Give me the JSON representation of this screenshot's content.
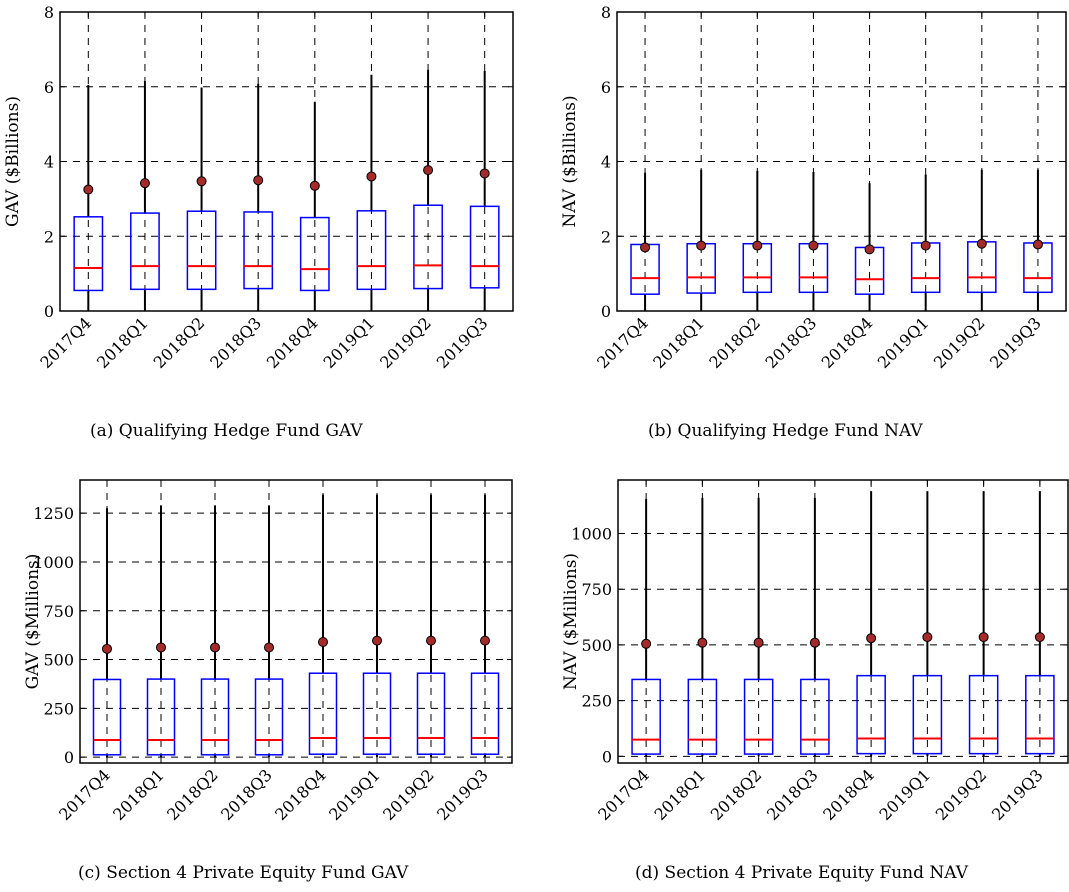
{
  "chart_data": [
    {
      "type": "box",
      "panel": "a",
      "caption": "(a) Qualifying Hedge Fund GAV",
      "ylabel": "GAV ($Billions)",
      "xlabel": "",
      "ylim": [
        0,
        8
      ],
      "yticks": [
        0,
        2,
        4,
        6,
        8
      ],
      "grid": true,
      "categories": [
        "2017Q4",
        "2018Q1",
        "2018Q2",
        "2018Q3",
        "2018Q4",
        "2019Q1",
        "2019Q2",
        "2019Q3"
      ],
      "boxes": [
        {
          "whisker_low": 0.0,
          "q1": 0.55,
          "median": 1.15,
          "q3": 2.52,
          "whisker_high": 6.05,
          "mean": 3.25
        },
        {
          "whisker_low": 0.0,
          "q1": 0.58,
          "median": 1.2,
          "q3": 2.62,
          "whisker_high": 6.15,
          "mean": 3.42
        },
        {
          "whisker_low": 0.0,
          "q1": 0.58,
          "median": 1.2,
          "q3": 2.67,
          "whisker_high": 5.98,
          "mean": 3.47
        },
        {
          "whisker_low": 0.0,
          "q1": 0.6,
          "median": 1.2,
          "q3": 2.65,
          "whisker_high": 6.08,
          "mean": 3.5
        },
        {
          "whisker_low": 0.0,
          "q1": 0.55,
          "median": 1.12,
          "q3": 2.5,
          "whisker_high": 5.6,
          "mean": 3.35
        },
        {
          "whisker_low": 0.0,
          "q1": 0.58,
          "median": 1.2,
          "q3": 2.68,
          "whisker_high": 6.32,
          "mean": 3.6
        },
        {
          "whisker_low": 0.0,
          "q1": 0.6,
          "median": 1.22,
          "q3": 2.83,
          "whisker_high": 6.45,
          "mean": 3.77
        },
        {
          "whisker_low": 0.0,
          "q1": 0.62,
          "median": 1.2,
          "q3": 2.8,
          "whisker_high": 6.42,
          "mean": 3.68
        }
      ]
    },
    {
      "type": "box",
      "panel": "b",
      "caption": "(b) Qualifying Hedge Fund NAV",
      "ylabel": "NAV ($Billions)",
      "xlabel": "",
      "ylim": [
        0,
        8
      ],
      "yticks": [
        0,
        2,
        4,
        6,
        8
      ],
      "grid": true,
      "categories": [
        "2017Q4",
        "2018Q1",
        "2018Q2",
        "2018Q3",
        "2018Q4",
        "2019Q1",
        "2019Q2",
        "2019Q3"
      ],
      "boxes": [
        {
          "whisker_low": 0.0,
          "q1": 0.45,
          "median": 0.88,
          "q3": 1.78,
          "whisker_high": 3.7,
          "mean": 1.7
        },
        {
          "whisker_low": 0.0,
          "q1": 0.48,
          "median": 0.9,
          "q3": 1.8,
          "whisker_high": 3.78,
          "mean": 1.75
        },
        {
          "whisker_low": 0.0,
          "q1": 0.5,
          "median": 0.9,
          "q3": 1.8,
          "whisker_high": 3.75,
          "mean": 1.75
        },
        {
          "whisker_low": 0.0,
          "q1": 0.5,
          "median": 0.9,
          "q3": 1.8,
          "whisker_high": 3.72,
          "mean": 1.75
        },
        {
          "whisker_low": 0.0,
          "q1": 0.45,
          "median": 0.85,
          "q3": 1.7,
          "whisker_high": 3.42,
          "mean": 1.65
        },
        {
          "whisker_low": 0.0,
          "q1": 0.5,
          "median": 0.88,
          "q3": 1.82,
          "whisker_high": 3.65,
          "mean": 1.75
        },
        {
          "whisker_low": 0.0,
          "q1": 0.5,
          "median": 0.9,
          "q3": 1.85,
          "whisker_high": 3.78,
          "mean": 1.8
        },
        {
          "whisker_low": 0.0,
          "q1": 0.5,
          "median": 0.88,
          "q3": 1.82,
          "whisker_high": 3.78,
          "mean": 1.78
        }
      ]
    },
    {
      "type": "box",
      "panel": "c",
      "caption": "(c) Section 4 Private Equity Fund GAV",
      "ylabel": "GAV ($Millions)",
      "xlabel": "",
      "ylim": [
        -30,
        1420
      ],
      "yticks": [
        0,
        250,
        500,
        750,
        1000,
        1250
      ],
      "grid": true,
      "categories": [
        "2017Q4",
        "2018Q1",
        "2018Q2",
        "2018Q3",
        "2018Q4",
        "2019Q1",
        "2019Q2",
        "2019Q3"
      ],
      "boxes": [
        {
          "whisker_low": 0,
          "q1": 12,
          "median": 88,
          "q3": 398,
          "whisker_high": 1275,
          "mean": 555
        },
        {
          "whisker_low": 0,
          "q1": 12,
          "median": 88,
          "q3": 400,
          "whisker_high": 1290,
          "mean": 562
        },
        {
          "whisker_low": 0,
          "q1": 12,
          "median": 88,
          "q3": 400,
          "whisker_high": 1290,
          "mean": 562
        },
        {
          "whisker_low": 0,
          "q1": 12,
          "median": 88,
          "q3": 400,
          "whisker_high": 1290,
          "mean": 562
        },
        {
          "whisker_low": 0,
          "q1": 15,
          "median": 98,
          "q3": 430,
          "whisker_high": 1345,
          "mean": 590
        },
        {
          "whisker_low": 0,
          "q1": 15,
          "median": 98,
          "q3": 430,
          "whisker_high": 1345,
          "mean": 597
        },
        {
          "whisker_low": 0,
          "q1": 15,
          "median": 98,
          "q3": 430,
          "whisker_high": 1345,
          "mean": 597
        },
        {
          "whisker_low": 0,
          "q1": 15,
          "median": 98,
          "q3": 430,
          "whisker_high": 1345,
          "mean": 597
        }
      ]
    },
    {
      "type": "box",
      "panel": "d",
      "caption": "(d) Section 4 Private Equity Fund NAV",
      "ylabel": "NAV ($Millions)",
      "xlabel": "",
      "ylim": [
        -30,
        1240
      ],
      "yticks": [
        0,
        250,
        500,
        750,
        1000
      ],
      "grid": true,
      "categories": [
        "2017Q4",
        "2018Q1",
        "2018Q2",
        "2018Q3",
        "2018Q4",
        "2019Q1",
        "2019Q2",
        "2019Q3"
      ],
      "boxes": [
        {
          "whisker_low": 0,
          "q1": 10,
          "median": 75,
          "q3": 345,
          "whisker_high": 1155,
          "mean": 505
        },
        {
          "whisker_low": 0,
          "q1": 10,
          "median": 75,
          "q3": 345,
          "whisker_high": 1160,
          "mean": 510
        },
        {
          "whisker_low": 0,
          "q1": 10,
          "median": 75,
          "q3": 345,
          "whisker_high": 1160,
          "mean": 510
        },
        {
          "whisker_low": 0,
          "q1": 10,
          "median": 75,
          "q3": 345,
          "whisker_high": 1160,
          "mean": 510
        },
        {
          "whisker_low": 0,
          "q1": 12,
          "median": 80,
          "q3": 362,
          "whisker_high": 1190,
          "mean": 530
        },
        {
          "whisker_low": 0,
          "q1": 12,
          "median": 80,
          "q3": 362,
          "whisker_high": 1190,
          "mean": 535
        },
        {
          "whisker_low": 0,
          "q1": 12,
          "median": 80,
          "q3": 362,
          "whisker_high": 1190,
          "mean": 535
        },
        {
          "whisker_low": 0,
          "q1": 12,
          "median": 80,
          "q3": 362,
          "whisker_high": 1190,
          "mean": 535
        }
      ]
    }
  ],
  "colors": {
    "box": "#0000ff",
    "median": "#ff0000",
    "whisker": "#000000",
    "mean_marker": "#a52a2a",
    "grid": "#000000"
  }
}
